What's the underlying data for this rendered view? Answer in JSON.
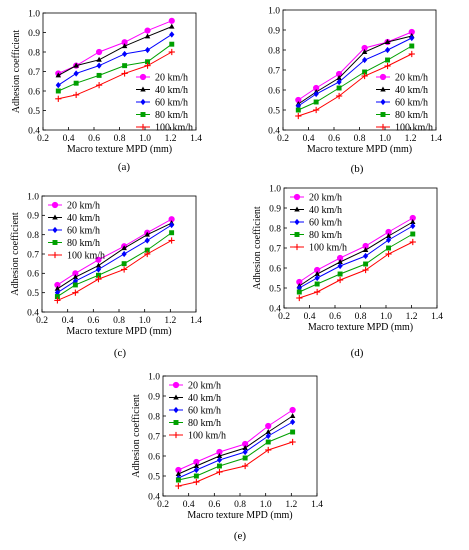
{
  "chart_data": [
    {
      "type": "line",
      "panel_label": "(a)",
      "xlabel": "Macro texture MPD (mm)",
      "ylabel": "Adhesion coefficient",
      "xlim": [
        0.2,
        1.4
      ],
      "ylim": [
        0.4,
        1.0
      ],
      "xticks": [
        0.2,
        0.4,
        0.6,
        0.8,
        1.0,
        1.2,
        1.4
      ],
      "yticks": [
        0.4,
        0.5,
        0.6,
        0.7,
        0.8,
        0.9,
        1.0
      ],
      "legend_position": "bottom-right",
      "grid": false,
      "x": [
        0.32,
        0.46,
        0.64,
        0.84,
        1.02,
        1.21
      ],
      "series": [
        {
          "name": "20 km/h",
          "values": [
            0.69,
            0.73,
            0.8,
            0.85,
            0.91,
            0.96
          ]
        },
        {
          "name": "40 km/h",
          "values": [
            0.68,
            0.73,
            0.76,
            0.83,
            0.88,
            0.93
          ]
        },
        {
          "name": "60 km/h",
          "values": [
            0.63,
            0.69,
            0.73,
            0.79,
            0.81,
            0.89
          ]
        },
        {
          "name": "80 km/h",
          "values": [
            0.6,
            0.64,
            0.68,
            0.73,
            0.75,
            0.84
          ]
        },
        {
          "name": "100 km/h",
          "values": [
            0.56,
            0.58,
            0.63,
            0.69,
            0.73,
            0.8
          ]
        }
      ]
    },
    {
      "type": "line",
      "panel_label": "(b)",
      "xlabel": "Macro texture MPD (mm)",
      "ylabel": "",
      "xlim": [
        0.2,
        1.4
      ],
      "ylim": [
        0.4,
        1.0
      ],
      "xticks": [
        0.2,
        0.4,
        0.6,
        0.8,
        1.0,
        1.2,
        1.4
      ],
      "yticks": [
        0.4,
        0.5,
        0.6,
        0.7,
        0.8,
        0.9,
        1.0
      ],
      "legend_position": "bottom-right",
      "grid": false,
      "x": [
        0.32,
        0.46,
        0.64,
        0.84,
        1.02,
        1.21
      ],
      "series": [
        {
          "name": "20 km/h",
          "values": [
            0.55,
            0.61,
            0.68,
            0.81,
            0.84,
            0.89
          ]
        },
        {
          "name": "40 km/h",
          "values": [
            0.53,
            0.59,
            0.66,
            0.79,
            0.84,
            0.87
          ]
        },
        {
          "name": "60 km/h",
          "values": [
            0.52,
            0.58,
            0.64,
            0.75,
            0.8,
            0.86
          ]
        },
        {
          "name": "80 km/h",
          "values": [
            0.5,
            0.54,
            0.61,
            0.69,
            0.75,
            0.82
          ]
        },
        {
          "name": "100 km/h",
          "values": [
            0.47,
            0.5,
            0.57,
            0.67,
            0.72,
            0.78
          ]
        }
      ]
    },
    {
      "type": "line",
      "panel_label": "(c)",
      "xlabel": "Macro texture MPD (mm)",
      "ylabel": "Adhesion coefficient",
      "xlim": [
        0.2,
        1.4
      ],
      "ylim": [
        0.4,
        1.0
      ],
      "xticks": [
        0.2,
        0.4,
        0.6,
        0.8,
        1.0,
        1.2,
        1.4
      ],
      "yticks": [
        0.4,
        0.5,
        0.6,
        0.7,
        0.8,
        0.9,
        1.0
      ],
      "legend_position": "top-left",
      "grid": false,
      "x": [
        0.32,
        0.46,
        0.64,
        0.84,
        1.02,
        1.21
      ],
      "series": [
        {
          "name": "20 km/h",
          "values": [
            0.54,
            0.6,
            0.67,
            0.74,
            0.81,
            0.88
          ]
        },
        {
          "name": "40 km/h",
          "values": [
            0.52,
            0.58,
            0.64,
            0.73,
            0.8,
            0.86
          ]
        },
        {
          "name": "60 km/h",
          "values": [
            0.5,
            0.56,
            0.62,
            0.7,
            0.77,
            0.85
          ]
        },
        {
          "name": "80 km/h",
          "values": [
            0.48,
            0.54,
            0.59,
            0.65,
            0.72,
            0.81
          ]
        },
        {
          "name": "100 km/h",
          "values": [
            0.46,
            0.5,
            0.57,
            0.62,
            0.7,
            0.77
          ]
        }
      ]
    },
    {
      "type": "line",
      "panel_label": "(d)",
      "xlabel": "Macro texture MPD (mm)",
      "ylabel": "Adhesion coefficient",
      "xlim": [
        0.2,
        1.4
      ],
      "ylim": [
        0.4,
        1.0
      ],
      "xticks": [
        0.2,
        0.4,
        0.6,
        0.8,
        1.0,
        1.2,
        1.4
      ],
      "yticks": [
        0.4,
        0.5,
        0.6,
        0.7,
        0.8,
        0.9,
        1.0
      ],
      "legend_position": "top-left",
      "grid": false,
      "x": [
        0.32,
        0.46,
        0.64,
        0.84,
        1.02,
        1.21
      ],
      "series": [
        {
          "name": "20 km/h",
          "values": [
            0.53,
            0.59,
            0.65,
            0.71,
            0.78,
            0.85
          ]
        },
        {
          "name": "40 km/h",
          "values": [
            0.51,
            0.57,
            0.63,
            0.69,
            0.76,
            0.83
          ]
        },
        {
          "name": "60 km/h",
          "values": [
            0.5,
            0.55,
            0.61,
            0.66,
            0.74,
            0.81
          ]
        },
        {
          "name": "80 km/h",
          "values": [
            0.48,
            0.52,
            0.57,
            0.62,
            0.7,
            0.77
          ]
        },
        {
          "name": "100 km/h",
          "values": [
            0.45,
            0.48,
            0.54,
            0.59,
            0.67,
            0.73
          ]
        }
      ]
    },
    {
      "type": "line",
      "panel_label": "(e)",
      "xlabel": "Macro texture MPD (mm)",
      "ylabel": "Adhesion coefficient",
      "xlim": [
        0.2,
        1.4
      ],
      "ylim": [
        0.4,
        1.0
      ],
      "xticks": [
        0.2,
        0.4,
        0.6,
        0.8,
        1.0,
        1.2,
        1.4
      ],
      "yticks": [
        0.4,
        0.5,
        0.6,
        0.7,
        0.8,
        0.9,
        1.0
      ],
      "legend_position": "top-left",
      "grid": false,
      "x": [
        0.32,
        0.46,
        0.64,
        0.84,
        1.02,
        1.21
      ],
      "series": [
        {
          "name": "20 km/h",
          "values": [
            0.53,
            0.57,
            0.62,
            0.66,
            0.75,
            0.83
          ]
        },
        {
          "name": "40 km/h",
          "values": [
            0.51,
            0.55,
            0.6,
            0.64,
            0.72,
            0.8
          ]
        },
        {
          "name": "60 km/h",
          "values": [
            0.49,
            0.53,
            0.58,
            0.62,
            0.7,
            0.77
          ]
        },
        {
          "name": "80 km/h",
          "values": [
            0.48,
            0.5,
            0.55,
            0.59,
            0.67,
            0.72
          ]
        },
        {
          "name": "100 km/h",
          "values": [
            0.45,
            0.47,
            0.52,
            0.55,
            0.63,
            0.67
          ]
        }
      ]
    }
  ],
  "series_styles": [
    {
      "color": "#ff00ff",
      "marker": "circle"
    },
    {
      "color": "#000000",
      "marker": "triangle"
    },
    {
      "color": "#0000ff",
      "marker": "diamond"
    },
    {
      "color": "#00a000",
      "marker": "square"
    },
    {
      "color": "#ff0000",
      "marker": "plus"
    }
  ]
}
